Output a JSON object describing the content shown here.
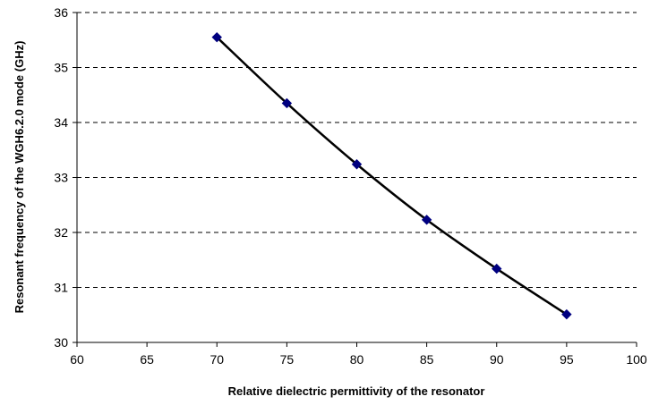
{
  "chart_data": {
    "type": "line",
    "title": "",
    "xlabel": "Relative dielectric permittivity of the resonator",
    "ylabel": "Resonant frequency of the WGH6.2.0 mode (GHz)",
    "xlim": [
      60,
      100
    ],
    "ylim": [
      30,
      36
    ],
    "x_ticks": [
      "60",
      "65",
      "70",
      "75",
      "80",
      "85",
      "90",
      "95",
      "100"
    ],
    "y_ticks": [
      "30",
      "31",
      "32",
      "33",
      "34",
      "35",
      "36"
    ],
    "grid": "horizontal dashed",
    "legend": "none",
    "series": [
      {
        "x": [
          70,
          75,
          80,
          85,
          90,
          95
        ],
        "y": [
          35.55,
          34.35,
          33.24,
          32.23,
          31.34,
          30.51
        ],
        "line_color": "#000000",
        "marker": "diamond",
        "marker_color": "#000080",
        "smooth": true
      }
    ]
  }
}
